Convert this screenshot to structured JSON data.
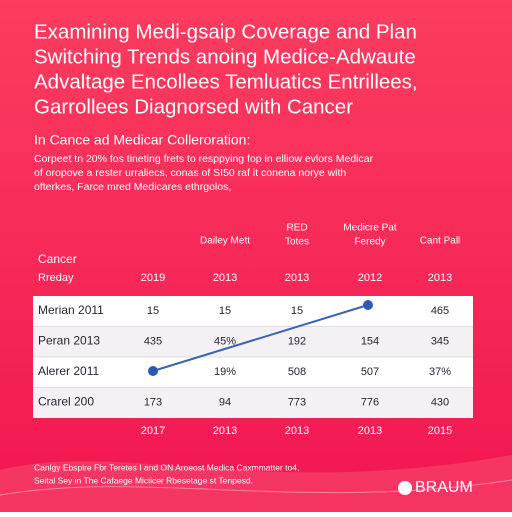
{
  "header": {
    "title": [
      "Examining Medi-gsaip Coverage and Plan",
      "Switching Trends anoing Medice-Adwaute",
      "Advaltage Encollees Temluatics Entrillees,",
      "Garrollees Diagnorsed with Cancer"
    ],
    "subtitle": "In Cance ad Medicar Colleroration:",
    "paragraph": [
      "Corpeet tn 20% fos tineting frets to resppying fop in elliow evlors Medicar",
      "of oropove a rester urraliecs, conas of SI50 raf it conena norye with",
      "ofterkes, Farce mred Medicares ethrgolos,"
    ]
  },
  "table": {
    "column_headers": [
      null,
      [
        "Dailey Mett"
      ],
      [
        "RED",
        "Totes"
      ],
      [
        "Medicre Pat",
        "Feredy"
      ],
      [
        "Cant Pall"
      ]
    ],
    "group_label": "Cancer",
    "year_row": {
      "label": "Rreday",
      "values": [
        "2019",
        "2013",
        "2013",
        "2012",
        "2013"
      ]
    },
    "rows": [
      {
        "label": "Merian 2011",
        "cells": [
          "15",
          "15",
          "15",
          null,
          "465"
        ]
      },
      {
        "label": "Peran 2013",
        "cells": [
          "435",
          "45%",
          "192",
          "154",
          "345"
        ]
      },
      {
        "label": "Alerer 2011",
        "cells": [
          null,
          "19%",
          "508",
          "507",
          "37%"
        ]
      },
      {
        "label": "Crarel 200",
        "cells": [
          "173",
          "94",
          "773",
          "776",
          "430"
        ]
      }
    ],
    "footer_years": [
      "2017",
      "2013",
      "2013",
      "2013",
      "2015"
    ]
  },
  "footnote": [
    "Canlgy Ebspire Fbr Teretes I and ON Aroeost Medica Caxmmatter to4,",
    "Seital Sey in The Cafaege Miciicer Rbesetage st Tenpesd."
  ],
  "brand": "BRAUM"
}
